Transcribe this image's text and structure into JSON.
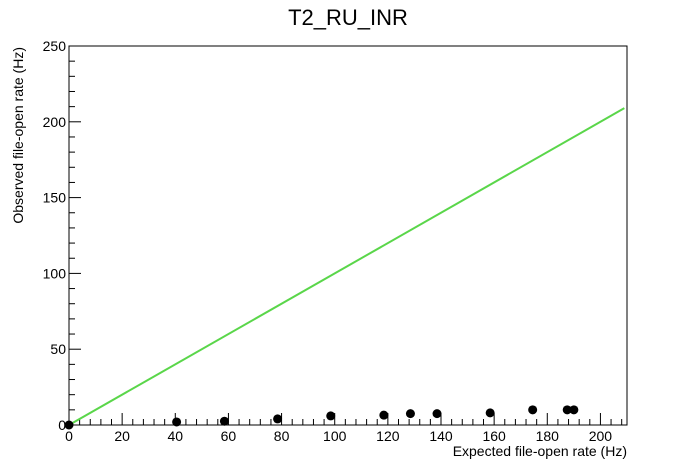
{
  "chart_data": {
    "type": "scatter",
    "title": "T2_RU_INR",
    "xlabel": "Expected file-open rate (Hz)",
    "ylabel": "Observed file-open rate (Hz)",
    "xlim": [
      0,
      210
    ],
    "ylim": [
      0,
      250
    ],
    "x_ticks": [
      0,
      20,
      40,
      60,
      80,
      100,
      120,
      140,
      160,
      180,
      200
    ],
    "y_ticks": [
      0,
      50,
      100,
      150,
      200,
      250
    ],
    "grid": false,
    "legend": "none",
    "series": [
      {
        "type": "scatter",
        "color": "#000000",
        "points": [
          {
            "x": 0,
            "y": 0
          },
          {
            "x": 40.5,
            "y": 2
          },
          {
            "x": 58.5,
            "y": 2.5
          },
          {
            "x": 78.5,
            "y": 4
          },
          {
            "x": 98.5,
            "y": 6
          },
          {
            "x": 118.5,
            "y": 6.5
          },
          {
            "x": 128.5,
            "y": 7.5
          },
          {
            "x": 138.5,
            "y": 7.5
          },
          {
            "x": 158.5,
            "y": 8
          },
          {
            "x": 174.5,
            "y": 10
          },
          {
            "x": 187.5,
            "y": 10
          },
          {
            "x": 190,
            "y": 10
          }
        ]
      },
      {
        "type": "line",
        "color": "#5ad64a",
        "points": [
          {
            "x": 0,
            "y": 0
          },
          {
            "x": 209,
            "y": 209
          }
        ]
      }
    ]
  }
}
